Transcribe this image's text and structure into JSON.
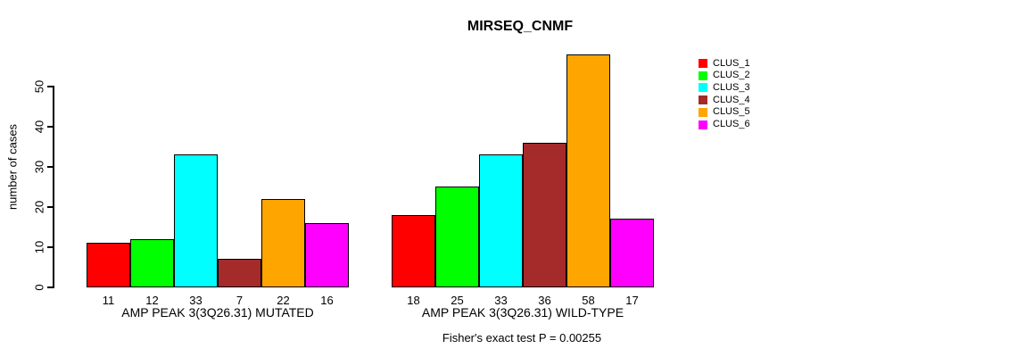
{
  "chart_data": {
    "type": "bar",
    "title": "MIRSEQ_CNMF",
    "ylabel": "number of cases",
    "xlabel": "",
    "categories": [
      "AMP PEAK 3(3Q26.31) MUTATED",
      "AMP PEAK 3(3Q26.31) WILD-TYPE"
    ],
    "series": [
      {
        "name": "CLUS_1",
        "color": "#ff0000",
        "values": [
          11,
          18
        ]
      },
      {
        "name": "CLUS_2",
        "color": "#00ff00",
        "values": [
          12,
          25
        ]
      },
      {
        "name": "CLUS_3",
        "color": "#00ffff",
        "values": [
          33,
          33
        ]
      },
      {
        "name": "CLUS_4",
        "color": "#a52a2a",
        "values": [
          7,
          36
        ]
      },
      {
        "name": "CLUS_5",
        "color": "#ffa500",
        "values": [
          22,
          58
        ]
      },
      {
        "name": "CLUS_6",
        "color": "#ff00ff",
        "values": [
          16,
          17
        ]
      }
    ],
    "yticks": [
      0,
      10,
      20,
      30,
      40,
      50
    ],
    "ylim": [
      0,
      50
    ],
    "grid": false,
    "legend_position": "right-outside",
    "show_values_under_bars": true,
    "footnote": "Fisher's exact test P = 0.00255",
    "axis_color": "#000000",
    "bar_border_color": "#000000",
    "text_color": "#000000",
    "background_color": "#ffffff"
  }
}
